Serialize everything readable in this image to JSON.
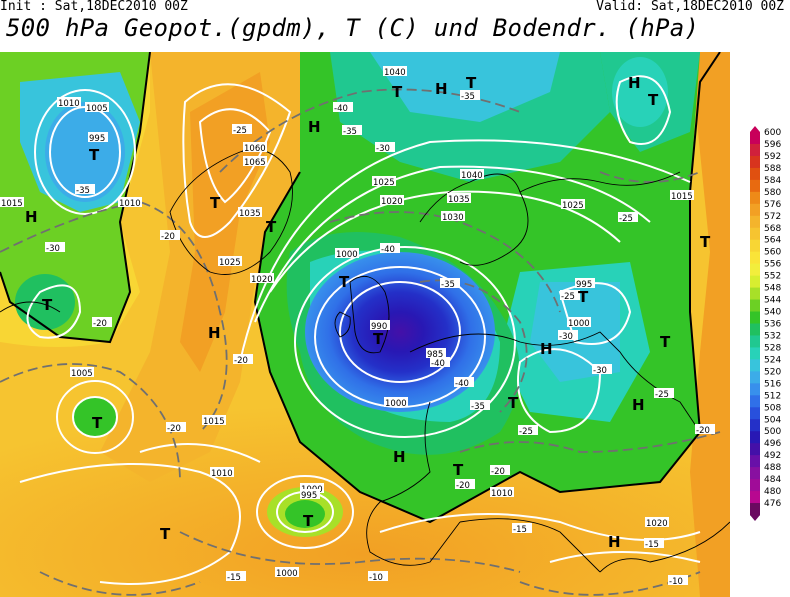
{
  "header": {
    "init": "Init : Sat,18DEC2010 00Z",
    "valid": "Valid: Sat,18DEC2010 00Z",
    "title": "500 hPa Geopot.(gpdm), T (C) und Bodendr. (hPa)"
  },
  "colorscale": {
    "levels": [
      "600",
      "596",
      "592",
      "588",
      "584",
      "580",
      "576",
      "572",
      "568",
      "564",
      "560",
      "556",
      "552",
      "548",
      "544",
      "540",
      "536",
      "532",
      "528",
      "524",
      "520",
      "516",
      "512",
      "508",
      "504",
      "500",
      "496",
      "492",
      "488",
      "484",
      "480",
      "476"
    ],
    "colors": [
      "#c8005a",
      "#d0203c",
      "#d8341e",
      "#e05010",
      "#e86a10",
      "#ee8a18",
      "#f2a024",
      "#f4b42c",
      "#f6c430",
      "#f8d634",
      "#fae438",
      "#f2ee3c",
      "#d8ee30",
      "#a8e028",
      "#6cd024",
      "#34c428",
      "#20c060",
      "#20c890",
      "#28d2b8",
      "#38c4dc",
      "#3cace8",
      "#3890ec",
      "#3070e8",
      "#2850dc",
      "#2430c8",
      "#2818b4",
      "#4410a8",
      "#6810a8",
      "#8810a0",
      "#a00c98",
      "#b80890",
      "#6a0a60"
    ]
  },
  "map": {
    "pressure_labels": [
      "1010",
      "1005",
      "995",
      "1015",
      "1030",
      "1040",
      "1060",
      "1065",
      "1035",
      "1025",
      "1020",
      "1000",
      "990",
      "985",
      "1040"
    ],
    "pressure_centers": [
      "H",
      "T",
      "T",
      "T",
      "H",
      "T",
      "H",
      "T",
      "T",
      "H",
      "H",
      "T",
      "T",
      "T",
      "H",
      "T",
      "H"
    ],
    "temp_labels": [
      "-35",
      "-30",
      "-25",
      "-20",
      "-15",
      "-10",
      "-40"
    ]
  }
}
